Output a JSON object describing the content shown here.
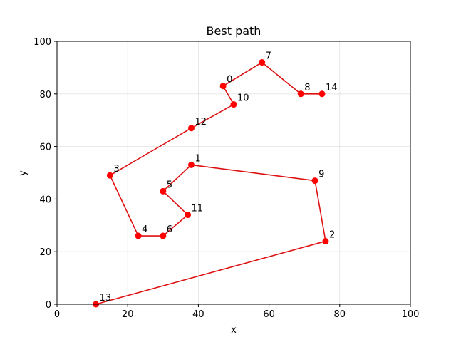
{
  "chart_data": {
    "type": "line",
    "title": "Best path",
    "xlabel": "x",
    "ylabel": "y",
    "xlim": [
      0,
      100
    ],
    "ylim": [
      0,
      100
    ],
    "xticks": [
      0,
      20,
      40,
      60,
      80,
      100
    ],
    "yticks": [
      0,
      20,
      40,
      60,
      80,
      100
    ],
    "grid": true,
    "color": "#ff0000",
    "line_color": "#dd1111",
    "points": [
      {
        "label": "0",
        "x": 47,
        "y": 83
      },
      {
        "label": "1",
        "x": 38,
        "y": 53
      },
      {
        "label": "2",
        "x": 76,
        "y": 24
      },
      {
        "label": "3",
        "x": 15,
        "y": 49
      },
      {
        "label": "4",
        "x": 23,
        "y": 26
      },
      {
        "label": "5",
        "x": 30,
        "y": 43
      },
      {
        "label": "6",
        "x": 30,
        "y": 26
      },
      {
        "label": "7",
        "x": 58,
        "y": 92
      },
      {
        "label": "8",
        "x": 69,
        "y": 80
      },
      {
        "label": "9",
        "x": 73,
        "y": 47
      },
      {
        "label": "10",
        "x": 50,
        "y": 76
      },
      {
        "label": "11",
        "x": 37,
        "y": 34
      },
      {
        "label": "12",
        "x": 38,
        "y": 67
      },
      {
        "label": "13",
        "x": 11,
        "y": 0
      },
      {
        "label": "14",
        "x": 75,
        "y": 80
      }
    ],
    "path_order": [
      14,
      8,
      7,
      0,
      10,
      12,
      3,
      4,
      6,
      11,
      5,
      1,
      9,
      2,
      13
    ]
  }
}
